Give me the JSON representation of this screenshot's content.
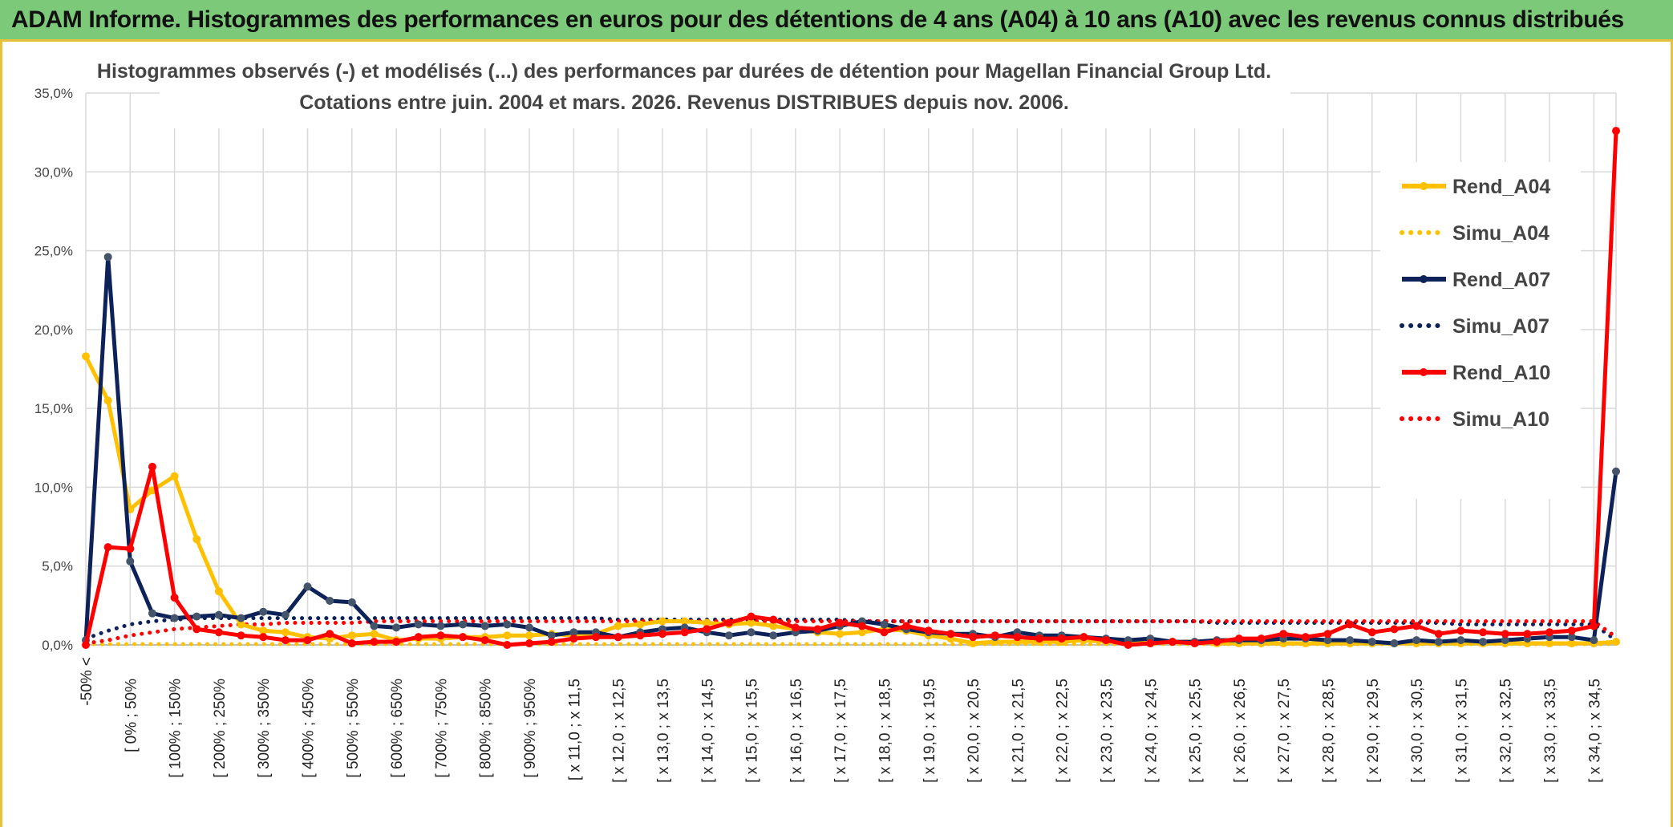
{
  "header": {
    "title": "ADAM Informe. Histogrammes des performances en euros pour des détentions de 4 ans (A04) à 10 ans (A10) avec les revenus connus distribués"
  },
  "chart_data": {
    "type": "line",
    "title_line1": "Histogrammes observés (-) et modélisés (...) des performances par durées de détention pour Magellan Financial Group Ltd.",
    "title_line2": "Cotations entre juin. 2004 et mars. 2026. Revenus DISTRIBUES depuis nov. 2006.",
    "xlabel": "",
    "ylabel": "",
    "ylim": [
      0,
      35
    ],
    "y_ticks": [
      "0,0%",
      "5,0%",
      "10,0%",
      "15,0%",
      "20,0%",
      "25,0%",
      "30,0%",
      "35,0%"
    ],
    "grid": true,
    "legend_position": "right",
    "x_labels": [
      "-50% <",
      "[ 0% ; 50%",
      "[ 100% ; 150%",
      "[ 200% ; 250%",
      "[ 300% ; 350%",
      "[ 400% ; 450%",
      "[ 500% ; 550%",
      "[ 600% ; 650%",
      "[ 700% ; 750%",
      "[ 800% ; 850%",
      "[ 900% ; 950%",
      "[ x 11,0 ; x 11,5",
      "[ x 12,0 ; x 12,5",
      "[ x 13,0 ; x 13,5",
      "[ x 14,0 ; x 14,5",
      "[ x 15,0 ; x 15,5",
      "[ x 16,0 ; x 16,5",
      "[ x 17,0 ; x 17,5",
      "[ x 18,0 ; x 18,5",
      "[ x 19,0 ; x 19,5",
      "[ x 20,0 ; x 20,5",
      "[ x 21,0 ; x 21,5",
      "[ x 22,0 ; x 22,5",
      "[ x 23,0 ; x 23,5",
      "[ x 24,0 ; x 24,5",
      "[ x 25,0 ; x 25,5",
      "[ x 26,0 ; x 26,5",
      "[ x 27,0 ; x 27,5",
      "[ x 28,0 ; x 28,5",
      "[ x 29,0 ; x 29,5",
      "[ x 30,0 ; x 30,5",
      "[ x 31,0 ; x 31,5",
      "[ x 32,0 ; x 32,5",
      "[ x 33,0 ; x 33,5",
      "[ x 34,0 ; x 34,5"
    ],
    "num_points": 70,
    "series": [
      {
        "name": "Rend_A04",
        "color": "#ffc000",
        "style": "solid",
        "marker": true,
        "values": [
          18.3,
          15.5,
          8.6,
          9.8,
          10.7,
          6.7,
          3.4,
          1.3,
          0.9,
          0.8,
          0.5,
          0.4,
          0.6,
          0.7,
          0.3,
          0.4,
          0.4,
          0.5,
          0.5,
          0.6,
          0.6,
          0.7,
          0.6,
          0.7,
          1.2,
          1.3,
          1.5,
          1.5,
          1.4,
          1.3,
          1.4,
          1.2,
          1.0,
          0.8,
          0.7,
          0.8,
          1.0,
          0.9,
          0.6,
          0.4,
          0.1,
          0.2,
          0.2,
          0.2,
          0.2,
          0.3,
          0.2,
          0.2,
          0.2,
          0.2,
          0.2,
          0.1,
          0.1,
          0.1,
          0.1,
          0.1,
          0.1,
          0.1,
          0.1,
          0.1,
          0.1,
          0.1,
          0.1,
          0.1,
          0.1,
          0.1,
          0.1,
          0.1,
          0.1,
          0.2
        ]
      },
      {
        "name": "Simu_A04",
        "color": "#ffc000",
        "style": "dotted",
        "marker": false,
        "values": [
          0.05,
          0.05,
          0.05,
          0.05,
          0.05,
          0.05,
          0.05,
          0.05,
          0.05,
          0.05,
          0.05,
          0.05,
          0.05,
          0.05,
          0.05,
          0.05,
          0.05,
          0.05,
          0.05,
          0.05,
          0.05,
          0.05,
          0.05,
          0.05,
          0.05,
          0.05,
          0.05,
          0.05,
          0.05,
          0.05,
          0.05,
          0.05,
          0.05,
          0.05,
          0.05,
          0.05,
          0.05,
          0.05,
          0.05,
          0.05,
          0.05,
          0.05,
          0.05,
          0.05,
          0.05,
          0.05,
          0.05,
          0.05,
          0.05,
          0.05,
          0.05,
          0.05,
          0.05,
          0.05,
          0.05,
          0.05,
          0.05,
          0.05,
          0.05,
          0.05,
          0.05,
          0.05,
          0.05,
          0.05,
          0.05,
          0.05,
          0.05,
          0.05,
          0.05,
          0.05
        ]
      },
      {
        "name": "Rend_A07",
        "color": "#0d2259",
        "style": "solid",
        "marker": true,
        "values": [
          0.3,
          24.6,
          5.3,
          2.0,
          1.7,
          1.8,
          1.9,
          1.7,
          2.1,
          1.9,
          3.7,
          2.8,
          2.7,
          1.2,
          1.1,
          1.3,
          1.2,
          1.3,
          1.2,
          1.3,
          1.1,
          0.6,
          0.8,
          0.8,
          0.5,
          0.8,
          1.0,
          1.1,
          0.8,
          0.6,
          0.8,
          0.6,
          0.8,
          0.9,
          1.2,
          1.5,
          1.3,
          1.0,
          0.8,
          0.7,
          0.7,
          0.5,
          0.8,
          0.6,
          0.6,
          0.5,
          0.4,
          0.3,
          0.4,
          0.2,
          0.2,
          0.3,
          0.3,
          0.3,
          0.4,
          0.4,
          0.3,
          0.3,
          0.2,
          0.1,
          0.3,
          0.2,
          0.3,
          0.2,
          0.3,
          0.4,
          0.5,
          0.5,
          0.3,
          11.0
        ]
      },
      {
        "name": "Simu_A07",
        "color": "#0d2259",
        "style": "dotted",
        "marker": false,
        "values": [
          0.4,
          0.9,
          1.3,
          1.5,
          1.6,
          1.7,
          1.7,
          1.7,
          1.7,
          1.7,
          1.7,
          1.7,
          1.7,
          1.7,
          1.7,
          1.7,
          1.7,
          1.7,
          1.7,
          1.7,
          1.7,
          1.7,
          1.7,
          1.7,
          1.6,
          1.6,
          1.6,
          1.6,
          1.6,
          1.6,
          1.6,
          1.6,
          1.6,
          1.6,
          1.6,
          1.5,
          1.5,
          1.5,
          1.5,
          1.5,
          1.5,
          1.5,
          1.5,
          1.5,
          1.5,
          1.5,
          1.5,
          1.5,
          1.5,
          1.5,
          1.5,
          1.4,
          1.4,
          1.4,
          1.4,
          1.4,
          1.4,
          1.4,
          1.4,
          1.4,
          1.4,
          1.4,
          1.3,
          1.3,
          1.3,
          1.3,
          1.3,
          1.3,
          1.3,
          0.3
        ]
      },
      {
        "name": "Rend_A10",
        "color": "#ff0000",
        "style": "solid",
        "marker": true,
        "values": [
          0.0,
          6.2,
          6.1,
          11.3,
          3.0,
          1.0,
          0.8,
          0.6,
          0.5,
          0.3,
          0.3,
          0.7,
          0.1,
          0.2,
          0.2,
          0.5,
          0.6,
          0.5,
          0.3,
          0.0,
          0.1,
          0.2,
          0.4,
          0.5,
          0.5,
          0.6,
          0.7,
          0.8,
          1.0,
          1.4,
          1.8,
          1.6,
          1.1,
          1.0,
          1.4,
          1.2,
          0.8,
          1.2,
          0.9,
          0.7,
          0.5,
          0.6,
          0.5,
          0.4,
          0.4,
          0.5,
          0.3,
          0.0,
          0.1,
          0.2,
          0.1,
          0.2,
          0.4,
          0.4,
          0.7,
          0.5,
          0.7,
          1.3,
          0.8,
          1.0,
          1.2,
          0.7,
          0.9,
          0.8,
          0.7,
          0.7,
          0.8,
          0.9,
          1.2,
          32.6
        ]
      },
      {
        "name": "Simu_A10",
        "color": "#ff0000",
        "style": "dotted",
        "marker": false,
        "values": [
          0.1,
          0.3,
          0.6,
          0.8,
          1.0,
          1.1,
          1.2,
          1.3,
          1.3,
          1.4,
          1.4,
          1.4,
          1.4,
          1.5,
          1.5,
          1.5,
          1.5,
          1.5,
          1.5,
          1.5,
          1.5,
          1.5,
          1.5,
          1.5,
          1.5,
          1.5,
          1.5,
          1.5,
          1.5,
          1.5,
          1.5,
          1.5,
          1.5,
          1.5,
          1.5,
          1.5,
          1.5,
          1.5,
          1.5,
          1.5,
          1.5,
          1.5,
          1.5,
          1.5,
          1.5,
          1.5,
          1.5,
          1.5,
          1.5,
          1.5,
          1.5,
          1.5,
          1.5,
          1.5,
          1.5,
          1.5,
          1.5,
          1.5,
          1.5,
          1.5,
          1.5,
          1.5,
          1.5,
          1.5,
          1.5,
          1.5,
          1.5,
          1.5,
          1.5,
          0.5
        ]
      }
    ]
  }
}
